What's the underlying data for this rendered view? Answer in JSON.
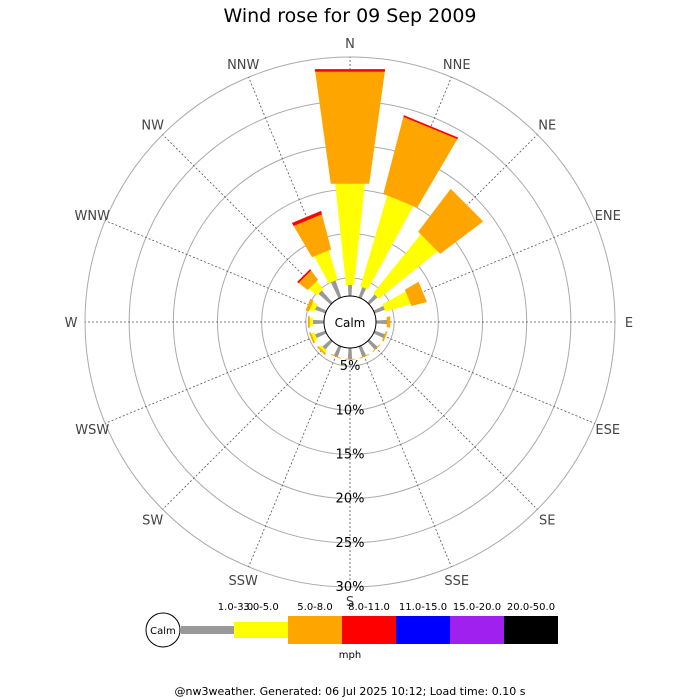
{
  "title": "Wind rose for 09 Sep 2009",
  "footer": "@nw3weather.  Generated: 06 Jul 2025 10:12; Load time: 0.10 s",
  "chart_data": {
    "type": "wind_rose",
    "title": "Wind rose for 09 Sep 2009",
    "directions": [
      "N",
      "NNE",
      "NE",
      "ENE",
      "E",
      "ESE",
      "SE",
      "SSE",
      "S",
      "SSW",
      "SW",
      "WSW",
      "W",
      "WNW",
      "NW",
      "NNW"
    ],
    "rings": [
      0,
      5,
      10,
      15,
      20,
      25,
      30
    ],
    "ring_labels": [
      "5%",
      "10%",
      "15%",
      "20%",
      "25%",
      "30%"
    ],
    "max_percent": 30,
    "calm_label": "Calm",
    "legend_calm_label": "Calm",
    "unit": "mph",
    "bins": [
      {
        "label": "1.0-3.0",
        "color": "#999999"
      },
      {
        "label": "3.0-5.0",
        "color": "#ffff00"
      },
      {
        "label": "5.0-8.0",
        "color": "#ffa500"
      },
      {
        "label": "8.0-11.0",
        "color": "#ff0000"
      },
      {
        "label": "11.0-15.0",
        "color": "#0000ff"
      },
      {
        "label": "15.0-20.0",
        "color": "#a020f0"
      },
      {
        "label": "20.0-50.0",
        "color": "#000000"
      }
    ],
    "cumulative_percent": {
      "N": [
        4.2,
        15.8,
        28.6,
        28.9,
        28.9,
        28.9,
        28.9
      ],
      "NNE": [
        4.2,
        15.0,
        24.0,
        24.2,
        24.2,
        24.2,
        24.2
      ],
      "NE": [
        4.2,
        12.8,
        18.9,
        18.9,
        18.9,
        18.9,
        18.9
      ],
      "ENE": [
        4.2,
        7.2,
        9.0,
        9.0,
        9.0,
        9.0,
        9.0
      ],
      "E": [
        4.2,
        4.2,
        4.6,
        4.6,
        4.6,
        4.6,
        4.6
      ],
      "ESE": [
        4.2,
        4.2,
        4.4,
        4.4,
        4.4,
        4.4,
        4.4
      ],
      "SE": [
        4.2,
        4.2,
        4.3,
        4.3,
        4.3,
        4.3,
        4.3
      ],
      "SSE": [
        4.2,
        4.2,
        4.3,
        4.3,
        4.3,
        4.3,
        4.3
      ],
      "S": [
        4.2,
        4.2,
        4.3,
        4.3,
        4.3,
        4.3,
        4.3
      ],
      "SSW": [
        4.2,
        4.2,
        4.3,
        4.3,
        4.3,
        4.3,
        4.3
      ],
      "SW": [
        4.2,
        4.5,
        4.7,
        4.7,
        4.7,
        4.7,
        4.7
      ],
      "WSW": [
        4.2,
        4.6,
        4.8,
        4.8,
        4.8,
        4.8,
        4.8
      ],
      "W": [
        4.2,
        4.6,
        4.8,
        4.8,
        4.8,
        4.8,
        4.8
      ],
      "WNW": [
        4.2,
        4.8,
        5.2,
        5.2,
        5.2,
        5.2,
        5.2
      ],
      "NW": [
        4.8,
        6.0,
        7.3,
        7.5,
        7.5,
        7.5,
        7.5
      ],
      "NNW": [
        5.0,
        8.5,
        12.6,
        13.0,
        13.0,
        13.0,
        13.0
      ]
    }
  }
}
